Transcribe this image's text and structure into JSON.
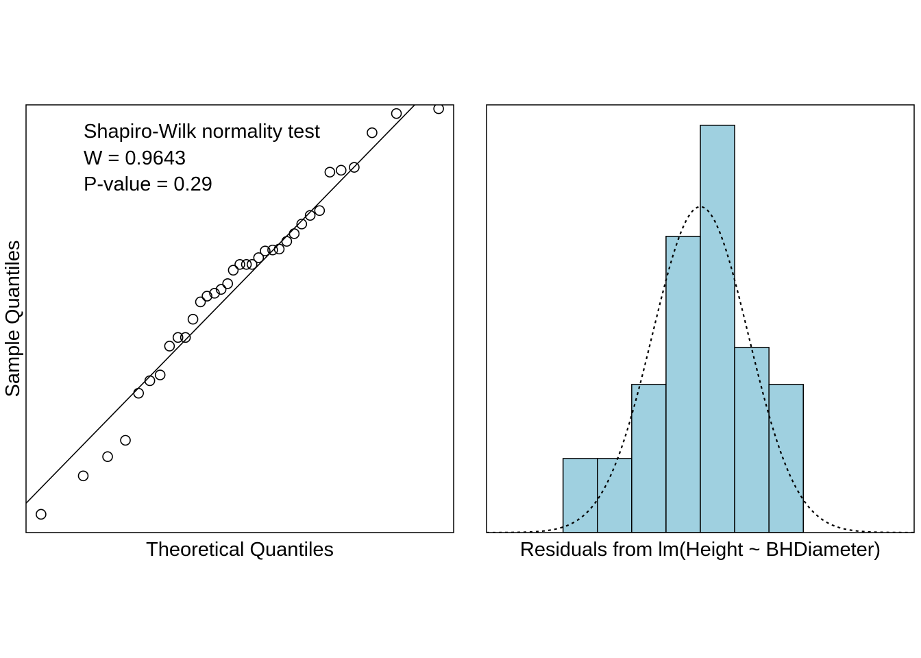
{
  "chart_data": [
    {
      "type": "scatter",
      "title": "",
      "xlabel": "Theoretical Quantiles",
      "ylabel": "Sample Quantiles",
      "xlim": [
        -2.28,
        2.28
      ],
      "ylim": [
        -2.6,
        1.85
      ],
      "grid": false,
      "axis_ticks_shown": false,
      "annotations": [
        "Shapiro-Wilk normality test",
        "W = 0.9643",
        "P-value = 0.29"
      ],
      "reference_line": {
        "intercept": -0.015,
        "slope": 1.0
      },
      "x": [
        -2.12,
        -1.67,
        -1.41,
        -1.22,
        -1.08,
        -0.96,
        -0.85,
        -0.75,
        -0.66,
        -0.58,
        -0.5,
        -0.42,
        -0.35,
        -0.27,
        -0.2,
        -0.13,
        -0.07,
        0.0,
        0.07,
        0.13,
        0.2,
        0.27,
        0.35,
        0.42,
        0.5,
        0.58,
        0.66,
        0.75,
        0.85,
        0.96,
        1.08,
        1.22,
        1.41,
        1.67,
        2.12
      ],
      "y": [
        -2.41,
        -2.01,
        -1.81,
        -1.64,
        -1.15,
        -1.02,
        -0.96,
        -0.66,
        -0.57,
        -0.57,
        -0.38,
        -0.2,
        -0.14,
        -0.11,
        -0.07,
        -0.01,
        0.13,
        0.19,
        0.19,
        0.19,
        0.26,
        0.33,
        0.34,
        0.35,
        0.43,
        0.51,
        0.61,
        0.7,
        0.75,
        1.15,
        1.17,
        1.2,
        1.56,
        1.76,
        1.81
      ]
    },
    {
      "type": "bar",
      "subtype": "histogram",
      "title": "",
      "xlabel": "Residuals from lm(Height ~ BHDiameter)",
      "ylabel": "",
      "grid": false,
      "axis_ticks_shown": false,
      "fill_color": "#9fd0e0",
      "edge_color": "#000000",
      "bins": [
        [
          -4,
          -3
        ],
        [
          -3,
          -2
        ],
        [
          -2,
          -1
        ],
        [
          -1,
          0
        ],
        [
          0,
          1
        ],
        [
          1,
          2
        ],
        [
          2,
          3
        ]
      ],
      "values": [
        2,
        2,
        4,
        8,
        11,
        5,
        4
      ],
      "xlim": [
        -6.23,
        6.23
      ],
      "ylim": [
        0,
        11.55
      ],
      "normal_curve": {
        "style": "dotted",
        "mean": 0.0,
        "sd": 1.4,
        "peak": 8.8
      }
    }
  ]
}
